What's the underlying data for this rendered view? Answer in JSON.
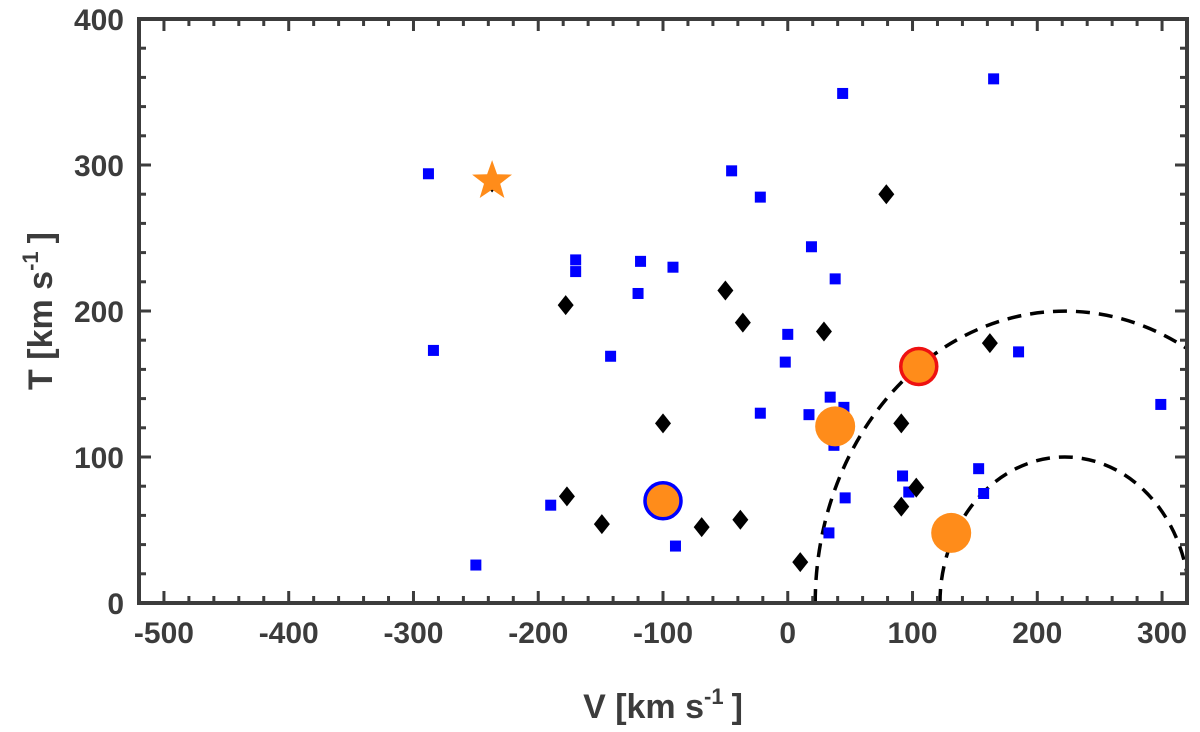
{
  "chart_data": {
    "type": "scatter",
    "xlabel": {
      "main": "V [km s",
      "sup": "-1",
      "tail": "]"
    },
    "ylabel": {
      "main": "T [km s",
      "sup": "-1",
      "tail": "]"
    },
    "xlim": [
      -520,
      320
    ],
    "ylim": [
      0,
      400
    ],
    "xticks": [
      -500,
      -400,
      -300,
      -200,
      -100,
      0,
      100,
      200,
      300
    ],
    "yticks": [
      0,
      100,
      200,
      300,
      400
    ],
    "grid": false,
    "colors": {
      "axis": "#3c3c3c",
      "squares": "#0000ff",
      "diamonds": "#000000",
      "orange": "#ff8c1a",
      "ring_blue": "#0000ff",
      "ring_red": "#ee1111",
      "curves": "#000000"
    },
    "series": [
      {
        "marker": "square",
        "points": [
          [
            -288,
            294
          ],
          [
            -284,
            173
          ],
          [
            -250,
            26
          ],
          [
            -190,
            67
          ],
          [
            -170,
            235
          ],
          [
            -170,
            227
          ],
          [
            -142,
            169
          ],
          [
            -120,
            212
          ],
          [
            -118,
            234
          ],
          [
            -92,
            230
          ],
          [
            -90,
            39
          ],
          [
            -45,
            296
          ],
          [
            -22,
            278
          ],
          [
            -22,
            130
          ],
          [
            -2,
            165
          ],
          [
            0,
            184
          ],
          [
            17,
            129
          ],
          [
            19,
            244
          ],
          [
            33,
            48
          ],
          [
            34,
            141
          ],
          [
            37,
            108
          ],
          [
            38,
            222
          ],
          [
            45,
            134
          ],
          [
            44,
            349
          ],
          [
            46,
            72
          ],
          [
            92,
            87
          ],
          [
            97,
            76
          ],
          [
            153,
            92
          ],
          [
            157,
            75
          ],
          [
            165,
            359
          ],
          [
            185,
            172
          ],
          [
            299,
            136
          ]
        ]
      },
      {
        "marker": "diamond",
        "points": [
          [
            -237,
            288
          ],
          [
            -178,
            204
          ],
          [
            -177,
            73
          ],
          [
            -149,
            54
          ],
          [
            -100,
            123
          ],
          [
            -69,
            52
          ],
          [
            -50,
            214
          ],
          [
            -38,
            57
          ],
          [
            -36,
            192
          ],
          [
            10,
            28
          ],
          [
            29,
            186
          ],
          [
            79,
            280
          ],
          [
            91,
            123
          ],
          [
            91,
            66
          ],
          [
            103,
            79
          ],
          [
            162,
            178
          ]
        ]
      },
      {
        "marker": "circle",
        "points": [
          [
            -100,
            70,
            "blue"
          ],
          [
            38,
            121,
            ""
          ],
          [
            105,
            162,
            "red"
          ],
          [
            131,
            48,
            ""
          ]
        ]
      },
      {
        "marker": "star",
        "points": [
          [
            -237,
            289
          ]
        ]
      }
    ],
    "curves": [
      {
        "center_x": 222,
        "radius": 200
      },
      {
        "center_x": 222,
        "radius": 100
      }
    ]
  }
}
